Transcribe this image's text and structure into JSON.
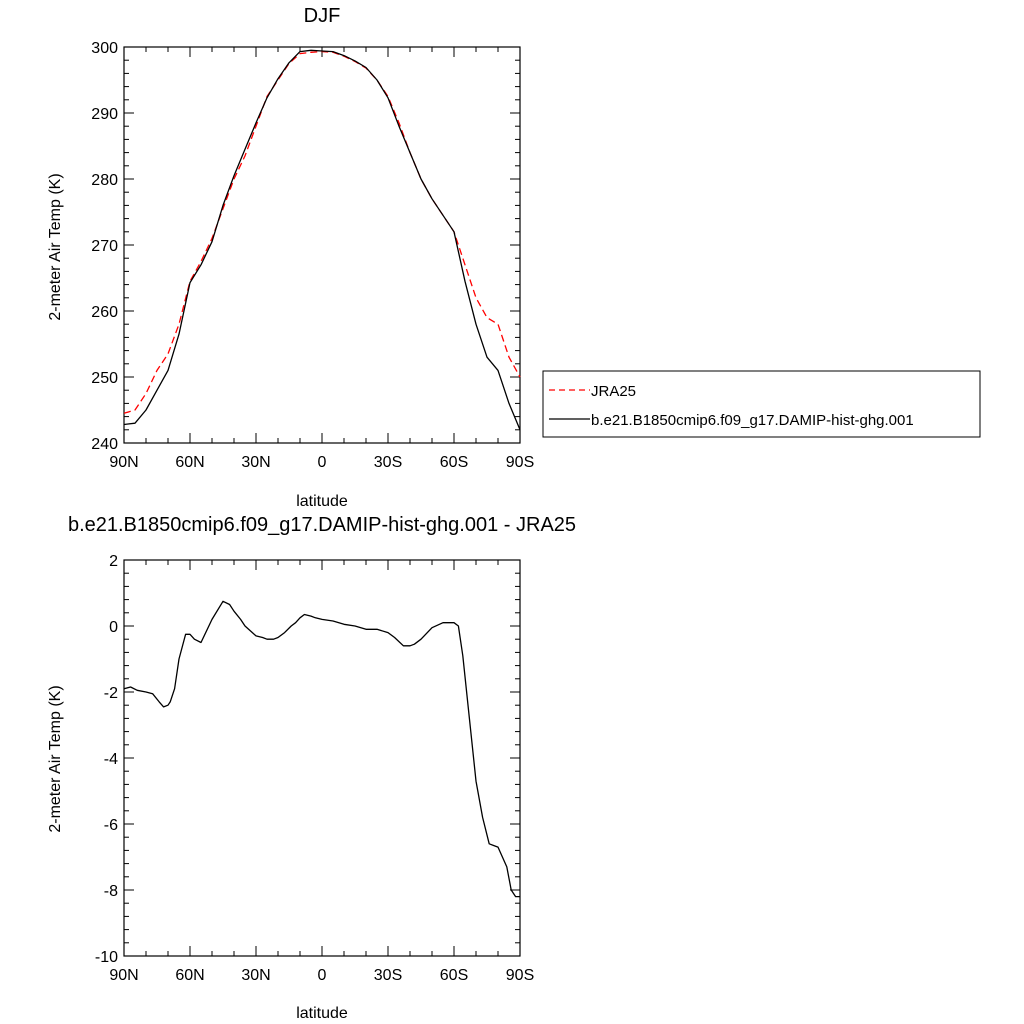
{
  "chart_data": [
    {
      "type": "line",
      "title": "DJF",
      "xlabel": "latitude",
      "ylabel": "2-meter Air Temp (K)",
      "xlim": [
        90,
        -90
      ],
      "ylim": [
        240,
        300
      ],
      "x_ticks": [
        90,
        60,
        30,
        0,
        -30,
        -60,
        -90
      ],
      "x_tick_labels": [
        "90N",
        "60N",
        "30N",
        "0",
        "30S",
        "60S",
        "90S"
      ],
      "y_ticks": [
        240,
        250,
        260,
        270,
        280,
        290,
        300
      ],
      "y_tick_labels": [
        "240",
        "250",
        "260",
        "270",
        "280",
        "290",
        "300"
      ],
      "grid": false,
      "legend_placement": "right",
      "series": [
        {
          "name": "JRA25",
          "color": "#ff0000",
          "dash": "dashed",
          "x": [
            90,
            85,
            80,
            75,
            70,
            65,
            60,
            55,
            50,
            45,
            40,
            35,
            30,
            25,
            20,
            15,
            10,
            5,
            0,
            -5,
            -10,
            -15,
            -20,
            -25,
            -30,
            -35,
            -40,
            -45,
            -50,
            -55,
            -60,
            -65,
            -70,
            -75,
            -80,
            -85,
            -90
          ],
          "y": [
            244.5,
            245.0,
            247.5,
            251.0,
            253.5,
            258.0,
            264.5,
            267.5,
            271.0,
            275.5,
            280.0,
            283.5,
            288.0,
            292.5,
            295.0,
            297.5,
            299.0,
            299.2,
            299.3,
            299.2,
            298.6,
            297.8,
            296.8,
            295.0,
            292.5,
            288.5,
            284.0,
            280.0,
            277.0,
            274.5,
            272.0,
            267.0,
            262.0,
            259.0,
            258.0,
            253.0,
            250.0
          ]
        },
        {
          "name": "b.e21.B1850cmip6.f09_g17.DAMIP-hist-ghg.001",
          "color": "#000000",
          "dash": "solid",
          "x": [
            90,
            85,
            80,
            75,
            70,
            65,
            60,
            55,
            50,
            45,
            40,
            35,
            30,
            25,
            20,
            15,
            10,
            5,
            0,
            -5,
            -10,
            -15,
            -20,
            -25,
            -30,
            -35,
            -40,
            -45,
            -50,
            -55,
            -60,
            -65,
            -70,
            -75,
            -80,
            -85,
            -90
          ],
          "y": [
            242.8,
            243.0,
            245.0,
            248.0,
            251.0,
            256.5,
            264.3,
            267.0,
            270.5,
            276.0,
            280.5,
            284.5,
            288.5,
            292.3,
            295.2,
            297.6,
            299.3,
            299.5,
            299.4,
            299.3,
            298.7,
            297.9,
            296.9,
            295.0,
            292.3,
            288.0,
            284.0,
            280.0,
            277.0,
            274.5,
            272.0,
            264.5,
            258.0,
            253.0,
            251.0,
            246.0,
            242.0
          ]
        }
      ]
    },
    {
      "type": "line",
      "title": "b.e21.B1850cmip6.f09_g17.DAMIP-hist-ghg.001 - JRA25",
      "xlabel": "latitude",
      "ylabel": "2-meter Air Temp (K)",
      "xlim": [
        90,
        -90
      ],
      "ylim": [
        -10,
        2
      ],
      "x_ticks": [
        90,
        60,
        30,
        0,
        -30,
        -60,
        -90
      ],
      "x_tick_labels": [
        "90N",
        "60N",
        "30N",
        "0",
        "30S",
        "60S",
        "90S"
      ],
      "y_ticks": [
        2,
        0,
        -2,
        -4,
        -6,
        -8,
        -10
      ],
      "y_tick_labels": [
        "2",
        "0",
        "-2",
        "-4",
        "-6",
        "-8",
        "-10"
      ],
      "grid": false,
      "series": [
        {
          "color": "#000000",
          "dash": "solid",
          "x": [
            90,
            87,
            84,
            80,
            77,
            74,
            72,
            70,
            69,
            67,
            65,
            62,
            60,
            58,
            55,
            50,
            45,
            42,
            40,
            37,
            35,
            30,
            27,
            25,
            22,
            20,
            17,
            14,
            12,
            10,
            8,
            5,
            3,
            0,
            -5,
            -10,
            -15,
            -20,
            -25,
            -30,
            -33,
            -37,
            -40,
            -42,
            -45,
            -50,
            -55,
            -58,
            -60,
            -62,
            -64,
            -67,
            -70,
            -73,
            -76,
            -78,
            -80,
            -84,
            -86,
            -88,
            -90
          ],
          "y": [
            -1.9,
            -1.85,
            -1.95,
            -2.0,
            -2.05,
            -2.3,
            -2.45,
            -2.4,
            -2.3,
            -1.9,
            -1.0,
            -0.25,
            -0.25,
            -0.4,
            -0.5,
            0.2,
            0.75,
            0.65,
            0.45,
            0.2,
            0.0,
            -0.3,
            -0.35,
            -0.4,
            -0.4,
            -0.35,
            -0.2,
            0.0,
            0.1,
            0.25,
            0.35,
            0.3,
            0.25,
            0.2,
            0.15,
            0.05,
            0.0,
            -0.1,
            -0.1,
            -0.2,
            -0.35,
            -0.6,
            -0.6,
            -0.55,
            -0.4,
            -0.05,
            0.1,
            0.1,
            0.1,
            0.0,
            -0.9,
            -2.8,
            -4.7,
            -5.8,
            -6.6,
            -6.65,
            -6.7,
            -7.3,
            -8.0,
            -8.2,
            -8.2
          ]
        }
      ]
    }
  ]
}
